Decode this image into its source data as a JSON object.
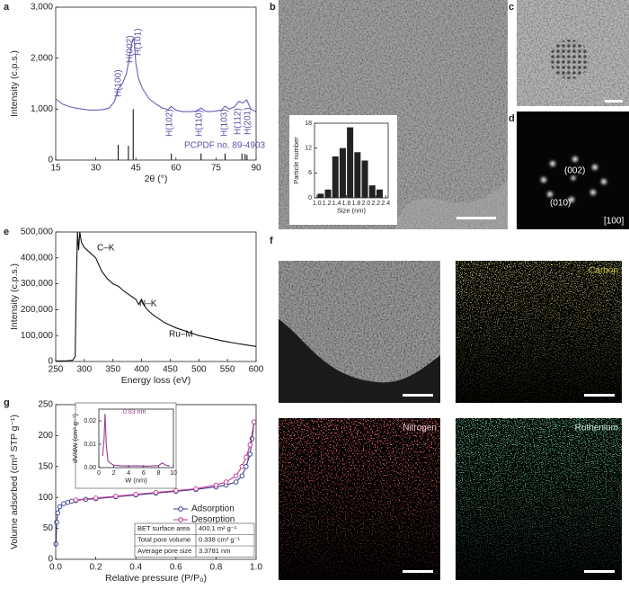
{
  "chart_data": [
    {
      "type": "line",
      "panel_label": "a",
      "xlabel": "2θ (°)",
      "ylabel": "Intensity (c.p.s.)",
      "x": [
        15,
        17.5,
        20,
        22.5,
        25,
        27.5,
        30,
        32.5,
        35,
        37,
        38.4,
        40,
        41.5,
        42.5,
        43.5,
        44.3,
        45,
        46,
        47.5,
        50,
        52.5,
        55,
        57,
        58.3,
        60,
        62.5,
        65,
        67.5,
        69.4,
        71,
        72.5,
        75,
        77,
        78.4,
        80,
        82,
        83.5,
        85,
        86.5,
        88,
        90
      ],
      "values": [
        1200,
        1100,
        1050,
        1020,
        1000,
        980,
        980,
        990,
        1020,
        1150,
        1400,
        1500,
        1700,
        2000,
        2300,
        2400,
        1900,
        1600,
        1400,
        1200,
        1100,
        1020,
        990,
        1050,
        980,
        950,
        950,
        960,
        1020,
        960,
        950,
        960,
        980,
        1060,
        1000,
        1050,
        1150,
        1120,
        1180,
        1000,
        950
      ],
      "color": "#6b5fb8",
      "sticks": {
        "x": [
          38.4,
          42.2,
          44.0,
          58.3,
          69.4,
          78.4,
          84.7,
          85.9,
          86.6
        ],
        "values": [
          300,
          280,
          1000,
          130,
          130,
          130,
          130,
          120,
          100
        ],
        "color": "#000000"
      },
      "annotations": [
        "H(100)",
        "H(002)",
        "H(101)",
        "H(102)",
        "H(110)",
        "H(103)",
        "H(112)",
        "H(201)",
        "PCPDF no. 89-4903"
      ],
      "xlim": [
        15,
        90
      ],
      "xticks": [
        15,
        30,
        45,
        60,
        75,
        90
      ],
      "ylim": [
        0,
        3000
      ],
      "yticks": [
        0,
        {
          "value": 1000,
          "label": "1,000"
        },
        {
          "value": 2000,
          "label": "2,000"
        },
        {
          "value": 3000,
          "label": "3,000"
        }
      ]
    },
    {
      "type": "histogram",
      "panel_label": "b",
      "xlabel": "Size (nm)",
      "ylabel": "Particle number",
      "bins": [
        1.0,
        1.15,
        1.3,
        1.45,
        1.6,
        1.75,
        1.9,
        2.05,
        2.2,
        2.35
      ],
      "values": [
        1,
        2,
        10,
        12,
        17,
        11,
        9,
        3,
        2
      ],
      "color": "#222222",
      "xlim": [
        0.95,
        2.45
      ],
      "xticks": [
        {
          "value": 1,
          "label": "1.0"
        },
        1.2,
        1.4,
        1.6,
        1.8,
        {
          "value": 2,
          "label": "2.0"
        },
        2.2,
        2.4
      ],
      "ylim": [
        0,
        18
      ],
      "yticks": [
        0,
        6,
        12,
        18
      ]
    },
    {
      "type": "line",
      "panel_label": "e",
      "xlabel": "Energy loss (eV)",
      "ylabel": "Intensity (c.p.s.)",
      "x": [
        250,
        270,
        280,
        284,
        286,
        288,
        290,
        292,
        295,
        300,
        305,
        310,
        320,
        330,
        340,
        350,
        360,
        370,
        380,
        390,
        395,
        400,
        405,
        410,
        420,
        430,
        440,
        450,
        460,
        480,
        500,
        520,
        540,
        560,
        580,
        600
      ],
      "values": [
        2000,
        3000,
        5000,
        20000,
        300000,
        500000,
        430000,
        500000,
        460000,
        440000,
        430000,
        420000,
        400000,
        350000,
        320000,
        300000,
        290000,
        270000,
        255000,
        240000,
        220000,
        240000,
        215000,
        200000,
        180000,
        165000,
        150000,
        140000,
        130000,
        115000,
        100000,
        90000,
        80000,
        72000,
        65000,
        58000
      ],
      "color": "#111111",
      "annotations": [
        "C–K",
        "N–K",
        "Ru–M"
      ],
      "xlim": [
        250,
        600
      ],
      "xticks": [
        250,
        300,
        350,
        400,
        450,
        500,
        550,
        600
      ],
      "ylim": [
        0,
        500000
      ],
      "yticks": [
        0,
        {
          "value": 100000,
          "label": "100,000"
        },
        {
          "value": 200000,
          "label": "200,000"
        },
        {
          "value": 300000,
          "label": "300,000"
        },
        {
          "value": 400000,
          "label": "400,000"
        },
        {
          "value": 500000,
          "label": "500,000"
        }
      ]
    },
    {
      "type": "line",
      "panel_label": "g",
      "xlabel": "Relative pressure (P/P₀)",
      "ylabel": "Volume adsorbed (cm³ STP g⁻¹)",
      "series": [
        {
          "name": "Adsorption",
          "color": "#2d3a8c",
          "x": [
            0.001,
            0.005,
            0.01,
            0.02,
            0.04,
            0.06,
            0.08,
            0.1,
            0.15,
            0.2,
            0.3,
            0.4,
            0.5,
            0.6,
            0.7,
            0.8,
            0.85,
            0.9,
            0.93,
            0.95,
            0.97,
            0.98,
            0.99
          ],
          "values": [
            25,
            60,
            75,
            85,
            90,
            92,
            94,
            95,
            97,
            98,
            101,
            104,
            107,
            110,
            113,
            117,
            120,
            125,
            135,
            150,
            170,
            195,
            222
          ]
        },
        {
          "name": "Desorption",
          "color": "#c2338f",
          "x": [
            0.99,
            0.97,
            0.95,
            0.93,
            0.9,
            0.85,
            0.8,
            0.7,
            0.6,
            0.5,
            0.4,
            0.3,
            0.2,
            0.1
          ],
          "values": [
            222,
            185,
            165,
            150,
            135,
            125,
            120,
            114,
            111,
            108,
            105,
            102,
            99,
            96
          ]
        }
      ],
      "legend": "center right",
      "table": [
        [
          "BET surface area",
          "400.1 m² g⁻¹"
        ],
        [
          "Total pore volume",
          "0.338 cm³ g⁻¹"
        ],
        [
          "Average pore size",
          "3.3781 nm"
        ]
      ],
      "xlim": [
        0,
        1
      ],
      "xticks": [
        {
          "value": 0,
          "label": "0.0"
        },
        0.2,
        0.4,
        0.6,
        0.8,
        {
          "value": 1,
          "label": "1.0"
        }
      ],
      "ylim": [
        0,
        250
      ],
      "yticks": [
        0,
        50,
        100,
        150,
        200,
        250
      ]
    },
    {
      "type": "line",
      "xlabel": "W (nm)",
      "ylabel": "dV/dW (cm³ g⁻¹)",
      "x": [
        0.5,
        0.7,
        0.83,
        1.0,
        1.2,
        1.5,
        2,
        3,
        4,
        5,
        6,
        7,
        8,
        8.5,
        9,
        9.5
      ],
      "values": [
        0.005,
        0.012,
        0.023,
        0.01,
        0.003,
        0.002,
        0.001,
        0.0008,
        0.0007,
        0.0008,
        0.0006,
        0.0007,
        0.0009,
        0.002,
        0.001,
        0.0007
      ],
      "color": "#9b3d97",
      "annotations": [
        "0.83 nm"
      ],
      "xlim": [
        0,
        10
      ],
      "xticks": [
        0,
        2,
        4,
        6,
        8,
        10
      ],
      "ylim": [
        0,
        0.025
      ],
      "yticks": [
        {
          "value": 0,
          "label": "0.00"
        },
        0.01,
        0.02
      ]
    }
  ],
  "images": [
    {
      "panel_label": "c"
    },
    {
      "panel_label": "d",
      "annotations": [
        "(002)",
        "(010)",
        "[100]"
      ]
    },
    {
      "panel_label": "f",
      "maps": [
        "Carbon",
        "Nitrogen",
        "Ruthenium"
      ]
    }
  ]
}
